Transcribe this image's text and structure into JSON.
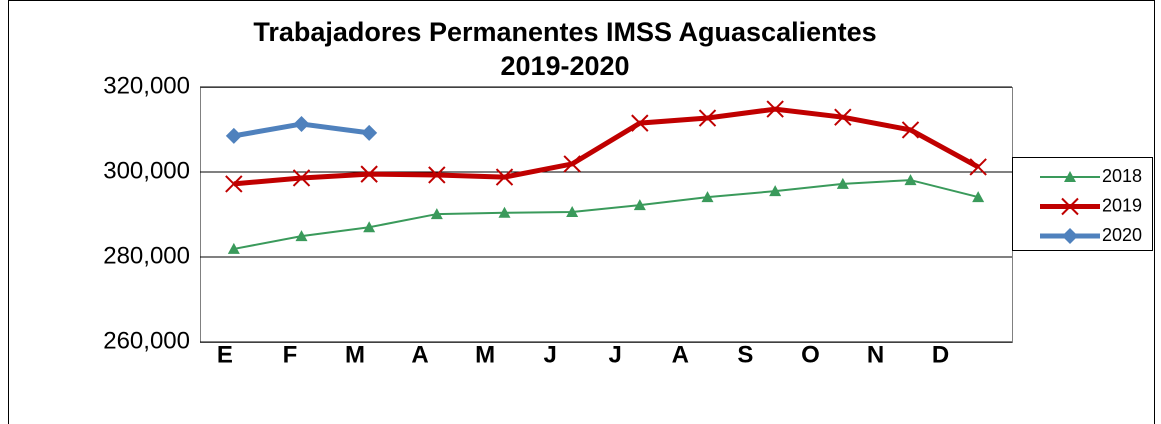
{
  "chart_data": {
    "type": "line",
    "title": [
      "Trabajadores Permanentes IMSS Aguascalientes",
      "2019-2020"
    ],
    "categories": [
      "E",
      "F",
      "M",
      "A",
      "M",
      "J",
      "J",
      "A",
      "S",
      "O",
      "N",
      "D"
    ],
    "series": [
      {
        "name": "2018",
        "color": "#3a9a5b",
        "marker": "triangle",
        "values": [
          281900,
          284900,
          287000,
          290100,
          290400,
          290600,
          292200,
          294100,
          295500,
          297200,
          298100,
          294100
        ]
      },
      {
        "name": "2019",
        "color": "#c00000",
        "marker": "x",
        "values": [
          297200,
          298600,
          299500,
          299300,
          298800,
          301900,
          311500,
          312700,
          314800,
          312900,
          309900,
          301200
        ]
      },
      {
        "name": "2020",
        "color": "#4f81bd",
        "marker": "diamond",
        "values": [
          308500,
          311300,
          309200,
          null,
          null,
          null,
          null,
          null,
          null,
          null,
          null,
          null
        ]
      }
    ],
    "ylim": [
      260000,
      320000
    ],
    "yticks": [
      {
        "value": 260000,
        "label": "260,000"
      },
      {
        "value": 280000,
        "label": "280,000"
      },
      {
        "value": 300000,
        "label": "300,000"
      },
      {
        "value": 320000,
        "label": "320,000"
      }
    ],
    "grid": true,
    "legend": "right"
  }
}
